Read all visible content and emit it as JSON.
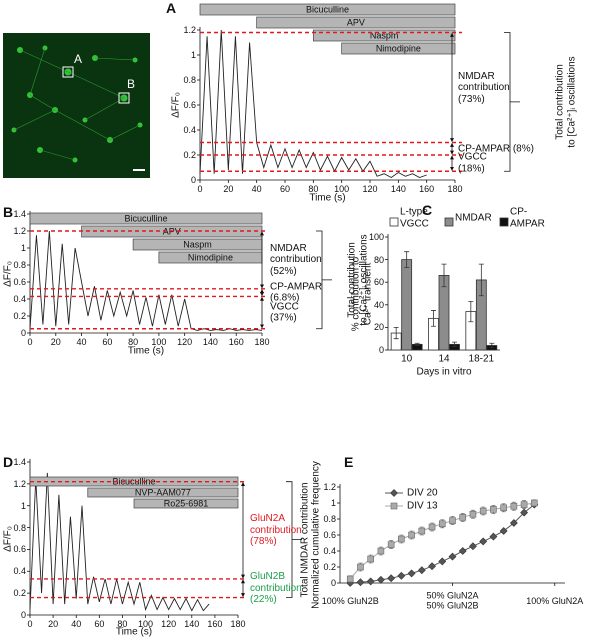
{
  "image": {
    "labels": [
      "A",
      "B"
    ]
  },
  "chart_data": [
    {
      "panel": "A",
      "type": "line",
      "xlabel": "Time (s)",
      "ylabel": "ΔF/F₀",
      "x": [
        0,
        5,
        10,
        15,
        20,
        25,
        30,
        35,
        40,
        45,
        50,
        55,
        60,
        65,
        70,
        75,
        80,
        85,
        90,
        95,
        100,
        105,
        110,
        115,
        120,
        125,
        130,
        135,
        140,
        145,
        150,
        155,
        160
      ],
      "values": [
        0.05,
        1.15,
        0.05,
        1.2,
        0.08,
        1.15,
        0.05,
        1.1,
        0.3,
        0.1,
        0.28,
        0.1,
        0.25,
        0.1,
        0.24,
        0.1,
        0.22,
        0.08,
        0.19,
        0.07,
        0.18,
        0.08,
        0.17,
        0.07,
        0.15,
        0.03,
        0.05,
        0.02,
        0.06,
        0.03,
        0.05,
        0.02,
        0.04
      ],
      "color": "#222222",
      "xlim": [
        0,
        180
      ],
      "ylim": [
        0,
        1.2
      ],
      "xticks": [
        0,
        20,
        40,
        60,
        80,
        100,
        120,
        140,
        160,
        180
      ],
      "yticks": [
        0,
        0.2,
        0.4,
        0.6,
        0.8,
        1,
        1.2
      ],
      "drugs": [
        {
          "name": "Bicuculline",
          "start": 0
        },
        {
          "name": "APV",
          "start": 40
        },
        {
          "name": "Naspm",
          "start": 80
        },
        {
          "name": "Nimodipine",
          "start": 100
        }
      ],
      "thresholds": [
        1.18,
        0.3,
        0.2,
        0.07
      ],
      "threshold_color": "#e0191f",
      "annotations": [
        {
          "text": "NMDAR\ncontribution\n(73%)"
        },
        {
          "text": "CP-AMPAR (8%)"
        },
        {
          "text": "VGCC\n(18%)"
        }
      ],
      "bracket_label": "Total contribution\nto [Ca²⁺]ᵢ oscillations"
    },
    {
      "panel": "B",
      "type": "line",
      "xlabel": "Time (s)",
      "ylabel": "ΔF/F₀",
      "x": [
        0,
        5,
        10,
        15,
        20,
        25,
        30,
        35,
        40,
        45,
        50,
        55,
        60,
        65,
        70,
        75,
        80,
        85,
        90,
        95,
        100,
        105,
        110,
        115,
        120,
        125,
        130,
        135,
        140,
        145,
        150,
        155,
        160,
        165,
        170,
        175,
        180
      ],
      "values": [
        0.05,
        1.15,
        0.1,
        1.2,
        0.08,
        1.05,
        0.1,
        1.0,
        0.6,
        0.2,
        0.55,
        0.15,
        0.5,
        0.2,
        0.48,
        0.2,
        0.5,
        0.1,
        0.42,
        0.08,
        0.45,
        0.1,
        0.45,
        0.08,
        0.4,
        0.05,
        0.03,
        0.05,
        0.03,
        0.04,
        0.03,
        0.05,
        0.03,
        0.04,
        0.03,
        0.04,
        0.03
      ],
      "color": "#222222",
      "xlim": [
        0,
        180
      ],
      "ylim": [
        0,
        1.4
      ],
      "xticks": [
        0,
        20,
        40,
        60,
        80,
        100,
        120,
        140,
        160,
        180
      ],
      "yticks": [
        0,
        0.2,
        0.4,
        0.6,
        0.8,
        1,
        1.2,
        1.4
      ],
      "drugs": [
        {
          "name": "Bicuculline",
          "start": 0
        },
        {
          "name": "APV",
          "start": 40
        },
        {
          "name": "Naspm",
          "start": 80
        },
        {
          "name": "Nimodipine",
          "start": 100
        }
      ],
      "thresholds": [
        1.2,
        0.52,
        0.43,
        0.05
      ],
      "threshold_color": "#e0191f",
      "annotations": [
        {
          "text": "NMDAR\ncontribution\n(52%)"
        },
        {
          "text": "CP-AMPAR\n(6.8%)"
        },
        {
          "text": "VGCC\n(37%)"
        }
      ],
      "bracket_label": "Total contribution\nto [Ca²⁺]ᵢ oscillations"
    },
    {
      "panel": "C",
      "type": "bar",
      "xlabel": "Days in vitro",
      "ylabel": "% contribution to\nCa²⁺ transient",
      "categories": [
        "10",
        "14",
        "18-21"
      ],
      "series": [
        {
          "name": "L-type VGCC",
          "color": "#ffffff",
          "values": [
            15,
            28,
            34
          ],
          "errors": [
            5,
            7,
            9
          ]
        },
        {
          "name": "NMDAR",
          "color": "#8c8c8c",
          "values": [
            80,
            66,
            62
          ],
          "errors": [
            7,
            10,
            14
          ]
        },
        {
          "name": "CP-AMPAR",
          "color": "#111111",
          "values": [
            5,
            5,
            4
          ],
          "errors": [
            1,
            2,
            2
          ]
        }
      ],
      "ylim": [
        0,
        100
      ],
      "yticks": [
        0,
        20,
        40,
        60,
        80,
        100
      ]
    },
    {
      "panel": "D",
      "type": "line",
      "xlabel": "Time (s)",
      "ylabel": "ΔF/F₀",
      "x": [
        0,
        5,
        10,
        15,
        20,
        25,
        30,
        35,
        40,
        45,
        50,
        55,
        60,
        65,
        70,
        75,
        80,
        85,
        90,
        95,
        100,
        105,
        110,
        115,
        120,
        125,
        130,
        135,
        140,
        145,
        150,
        155
      ],
      "values": [
        0.05,
        1.25,
        0.2,
        1.3,
        0.1,
        1.1,
        0.1,
        0.9,
        0.15,
        1.0,
        0.1,
        0.35,
        0.12,
        0.33,
        0.1,
        0.33,
        0.1,
        0.3,
        0.1,
        0.3,
        0.05,
        0.18,
        0.05,
        0.16,
        0.05,
        0.15,
        0.05,
        0.15,
        0.04,
        0.14,
        0.04,
        0.1
      ],
      "color": "#222222",
      "xlim": [
        0,
        180
      ],
      "ylim": [
        0,
        1.4
      ],
      "xticks": [
        0,
        20,
        40,
        60,
        80,
        100,
        120,
        140,
        160,
        180
      ],
      "yticks": [
        0,
        0.2,
        0.4,
        0.6,
        0.8,
        1,
        1.2,
        1.4
      ],
      "drugs": [
        {
          "name": "Bicuculline",
          "start": 0
        },
        {
          "name": "NVP-AAM077",
          "start": 50
        },
        {
          "name": "Ro25-6981",
          "start": 90
        }
      ],
      "thresholds": [
        1.22,
        0.33,
        0.16
      ],
      "threshold_color": "#e0191f",
      "annotations": [
        {
          "text": "GluN2A\ncontribution\n(78%)",
          "color": "#e0191f"
        },
        {
          "text": "GluN2B\ncontribution\n(22%)",
          "color": "#1a9e4a"
        }
      ],
      "bracket_label": "Total NMDAR contribution"
    },
    {
      "panel": "E",
      "type": "scatter",
      "ylabel": "Normalized cumulative frequency",
      "x": [
        0,
        0.05,
        0.1,
        0.15,
        0.2,
        0.25,
        0.3,
        0.35,
        0.4,
        0.45,
        0.5,
        0.55,
        0.6,
        0.65,
        0.7,
        0.75,
        0.8,
        0.85,
        0.9
      ],
      "series": [
        {
          "name": "DIV 20",
          "color": "#555555",
          "marker": "diamond",
          "values": [
            0.0,
            0.01,
            0.02,
            0.04,
            0.06,
            0.09,
            0.12,
            0.16,
            0.21,
            0.27,
            0.33,
            0.4,
            0.46,
            0.52,
            0.58,
            0.65,
            0.75,
            0.88,
            0.98
          ],
          "errors": [
            0.02,
            0.02,
            0.02,
            0.02,
            0.02,
            0.02,
            0.02,
            0.02,
            0.02,
            0.02,
            0.02,
            0.02,
            0.02,
            0.02,
            0.02,
            0.02,
            0.02,
            0.02,
            0.02
          ]
        },
        {
          "name": "DIV 13",
          "color": "#aaaaaa",
          "marker": "square",
          "values": [
            0.05,
            0.2,
            0.3,
            0.4,
            0.48,
            0.55,
            0.6,
            0.65,
            0.7,
            0.74,
            0.78,
            0.82,
            0.86,
            0.9,
            0.92,
            0.94,
            0.96,
            0.98,
            1.0
          ],
          "errors": [
            0.04,
            0.05,
            0.05,
            0.05,
            0.05,
            0.05,
            0.05,
            0.05,
            0.05,
            0.05,
            0.05,
            0.05,
            0.05,
            0.05,
            0.05,
            0.05,
            0.05,
            0.05,
            0.04
          ]
        }
      ],
      "xlim": [
        -0.05,
        1.05
      ],
      "ylim": [
        0,
        1.2
      ],
      "xticks": [
        {
          "value": 0,
          "label": "100% GluN2B"
        },
        {
          "value": 0.5,
          "label": "50% GluN2A\n50% GluN2B"
        },
        {
          "value": 1,
          "label": "100% GluN2A"
        }
      ],
      "yticks": [
        0,
        0.2,
        0.4,
        0.6,
        0.8,
        1,
        1.2
      ]
    }
  ]
}
